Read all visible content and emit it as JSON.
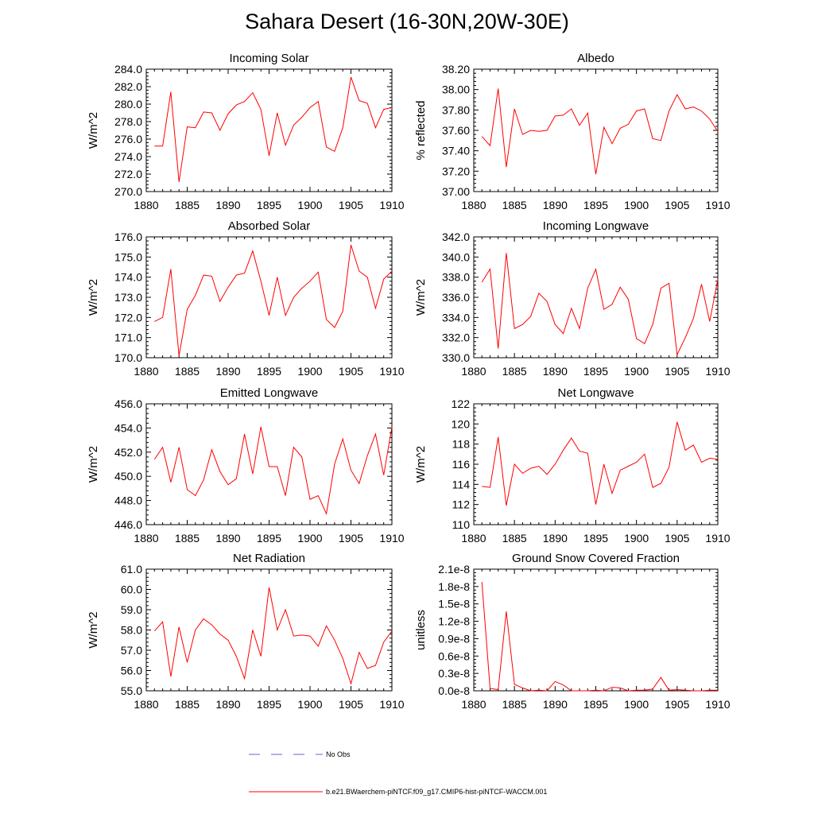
{
  "title": "Sahara Desert (16-30N,20W-30E)",
  "colors": {
    "series": "#ff0000",
    "noobs": "#6666cc",
    "axis": "#000000"
  },
  "legend": {
    "noobs_label": "No Obs",
    "series_label": "b.e21.BWaerchem-piNTCF.f09_g17.CMIP6-hist-piNTCF-WACCM.001"
  },
  "chart_data": [
    {
      "type": "line",
      "title": "Incoming Solar",
      "ylabel": "W/m^2",
      "xlim": [
        1880,
        1910
      ],
      "ylim": [
        270,
        284
      ],
      "yticks": [
        "270.0",
        "272.0",
        "274.0",
        "276.0",
        "278.0",
        "280.0",
        "282.0",
        "284.0"
      ],
      "xticks": [
        "1880",
        "1885",
        "1890",
        "1895",
        "1900",
        "1905",
        "1910"
      ],
      "x": [
        1881,
        1882,
        1883,
        1884,
        1885,
        1886,
        1887,
        1888,
        1889,
        1890,
        1891,
        1892,
        1893,
        1894,
        1895,
        1896,
        1897,
        1898,
        1899,
        1900,
        1901,
        1902,
        1903,
        1904,
        1905,
        1906,
        1907,
        1908,
        1909,
        1910
      ],
      "values": [
        275.2,
        275.2,
        281.4,
        271.1,
        277.4,
        277.3,
        279.1,
        279.0,
        277.0,
        278.9,
        279.9,
        280.3,
        281.3,
        279.4,
        274.1,
        279.0,
        275.3,
        277.6,
        278.5,
        279.6,
        280.3,
        275.1,
        274.6,
        277.3,
        283.1,
        280.4,
        280.1,
        277.3,
        279.4,
        279.6
      ]
    },
    {
      "type": "line",
      "title": "Albedo",
      "ylabel": "% reflected",
      "xlim": [
        1880,
        1910
      ],
      "ylim": [
        37.0,
        38.2
      ],
      "yticks": [
        "37.00",
        "37.20",
        "37.40",
        "37.60",
        "37.80",
        "38.00",
        "38.20"
      ],
      "xticks": [
        "1880",
        "1885",
        "1890",
        "1895",
        "1900",
        "1905",
        "1910"
      ],
      "x": [
        1881,
        1882,
        1883,
        1884,
        1885,
        1886,
        1887,
        1888,
        1889,
        1890,
        1891,
        1892,
        1893,
        1894,
        1895,
        1896,
        1897,
        1898,
        1899,
        1900,
        1901,
        1902,
        1903,
        1904,
        1905,
        1906,
        1907,
        1908,
        1909,
        1910
      ],
      "values": [
        37.54,
        37.45,
        38.01,
        37.24,
        37.81,
        37.56,
        37.6,
        37.59,
        37.6,
        37.74,
        37.75,
        37.81,
        37.65,
        37.77,
        37.17,
        37.63,
        37.47,
        37.62,
        37.66,
        37.79,
        37.81,
        37.52,
        37.5,
        37.79,
        37.95,
        37.81,
        37.83,
        37.79,
        37.71,
        37.59
      ]
    },
    {
      "type": "line",
      "title": "Absorbed Solar",
      "ylabel": "W/m^2",
      "xlim": [
        1880,
        1910
      ],
      "ylim": [
        170,
        176
      ],
      "yticks": [
        "170.0",
        "171.0",
        "172.0",
        "173.0",
        "174.0",
        "175.0",
        "176.0"
      ],
      "xticks": [
        "1880",
        "1885",
        "1890",
        "1895",
        "1900",
        "1905",
        "1910"
      ],
      "x": [
        1881,
        1882,
        1883,
        1884,
        1885,
        1886,
        1887,
        1888,
        1889,
        1890,
        1891,
        1892,
        1893,
        1894,
        1895,
        1896,
        1897,
        1898,
        1899,
        1900,
        1901,
        1902,
        1903,
        1904,
        1905,
        1906,
        1907,
        1908,
        1909,
        1910
      ],
      "values": [
        171.8,
        172.0,
        174.4,
        170.1,
        172.4,
        173.1,
        174.1,
        174.05,
        172.8,
        173.5,
        174.1,
        174.2,
        175.3,
        173.8,
        172.1,
        174.0,
        172.1,
        173.0,
        173.45,
        173.8,
        174.25,
        171.9,
        171.5,
        172.3,
        175.6,
        174.3,
        174.0,
        172.45,
        173.9,
        174.3
      ]
    },
    {
      "type": "line",
      "title": "Incoming Longwave",
      "ylabel": "W/m^2",
      "xlim": [
        1880,
        1910
      ],
      "ylim": [
        330,
        342
      ],
      "yticks": [
        "330.0",
        "332.0",
        "334.0",
        "336.0",
        "338.0",
        "340.0",
        "342.0"
      ],
      "xticks": [
        "1880",
        "1885",
        "1890",
        "1895",
        "1900",
        "1905",
        "1910"
      ],
      "x": [
        1881,
        1882,
        1883,
        1884,
        1885,
        1886,
        1887,
        1888,
        1889,
        1890,
        1891,
        1892,
        1893,
        1894,
        1895,
        1896,
        1897,
        1898,
        1899,
        1900,
        1901,
        1902,
        1903,
        1904,
        1905,
        1906,
        1907,
        1908,
        1909,
        1910
      ],
      "values": [
        337.5,
        338.8,
        330.9,
        340.4,
        332.9,
        333.3,
        334.1,
        336.4,
        335.6,
        333.3,
        332.4,
        334.9,
        332.9,
        336.9,
        338.8,
        334.8,
        335.3,
        337.0,
        335.8,
        331.9,
        331.4,
        333.3,
        336.9,
        337.4,
        330.3,
        332.0,
        333.9,
        337.3,
        333.6,
        337.8
      ]
    },
    {
      "type": "line",
      "title": "Emitted Longwave",
      "ylabel": "W/m^2",
      "xlim": [
        1880,
        1910
      ],
      "ylim": [
        446,
        456
      ],
      "yticks": [
        "446.0",
        "448.0",
        "450.0",
        "452.0",
        "454.0",
        "456.0"
      ],
      "xticks": [
        "1880",
        "1885",
        "1890",
        "1895",
        "1900",
        "1905",
        "1910"
      ],
      "x": [
        1881,
        1882,
        1883,
        1884,
        1885,
        1886,
        1887,
        1888,
        1889,
        1890,
        1891,
        1892,
        1893,
        1894,
        1895,
        1896,
        1897,
        1898,
        1899,
        1900,
        1901,
        1902,
        1903,
        1904,
        1905,
        1906,
        1907,
        1908,
        1909,
        1910
      ],
      "values": [
        451.4,
        452.4,
        449.5,
        452.4,
        448.9,
        448.4,
        449.7,
        452.2,
        450.4,
        449.3,
        449.8,
        453.5,
        450.2,
        454.1,
        450.8,
        450.8,
        448.4,
        452.4,
        451.6,
        448.1,
        448.4,
        446.9,
        451.0,
        453.1,
        450.5,
        449.4,
        451.7,
        453.5,
        450.1,
        454.1
      ]
    },
    {
      "type": "line",
      "title": "Net Longwave",
      "ylabel": "W/m^2",
      "xlim": [
        1880,
        1910
      ],
      "ylim": [
        110,
        122
      ],
      "yticks": [
        "110",
        "112",
        "114",
        "116",
        "118",
        "120",
        "122"
      ],
      "xticks": [
        "1880",
        "1885",
        "1890",
        "1895",
        "1900",
        "1905",
        "1910"
      ],
      "x": [
        1881,
        1882,
        1883,
        1884,
        1885,
        1886,
        1887,
        1888,
        1889,
        1890,
        1891,
        1892,
        1893,
        1894,
        1895,
        1896,
        1897,
        1898,
        1899,
        1900,
        1901,
        1902,
        1903,
        1904,
        1905,
        1906,
        1907,
        1908,
        1909,
        1910
      ],
      "values": [
        113.8,
        113.7,
        118.7,
        111.9,
        116.0,
        115.1,
        115.6,
        115.8,
        115.0,
        116.0,
        117.4,
        118.6,
        117.3,
        117.1,
        112.0,
        116.0,
        113.1,
        115.4,
        115.8,
        116.2,
        117.0,
        113.7,
        114.1,
        115.7,
        120.2,
        117.4,
        117.9,
        116.2,
        116.6,
        116.5
      ]
    },
    {
      "type": "line",
      "title": "Net Radiation",
      "ylabel": "W/m^2",
      "xlim": [
        1880,
        1910
      ],
      "ylim": [
        55,
        61
      ],
      "yticks": [
        "55.0",
        "56.0",
        "57.0",
        "58.0",
        "59.0",
        "60.0",
        "61.0"
      ],
      "xticks": [
        "1880",
        "1885",
        "1890",
        "1895",
        "1900",
        "1905",
        "1910"
      ],
      "x": [
        1881,
        1882,
        1883,
        1884,
        1885,
        1886,
        1887,
        1888,
        1889,
        1890,
        1891,
        1892,
        1893,
        1894,
        1895,
        1896,
        1897,
        1898,
        1899,
        1900,
        1901,
        1902,
        1903,
        1904,
        1905,
        1906,
        1907,
        1908,
        1909,
        1910
      ],
      "values": [
        57.95,
        58.4,
        55.7,
        58.15,
        56.4,
        58.0,
        58.55,
        58.25,
        57.8,
        57.5,
        56.7,
        55.6,
        58.0,
        56.7,
        60.1,
        58.0,
        59.0,
        57.7,
        57.75,
        57.7,
        57.2,
        58.2,
        57.5,
        56.6,
        55.35,
        56.9,
        56.1,
        56.25,
        57.4,
        57.95
      ]
    },
    {
      "type": "line",
      "title": "Ground Snow Covered Fraction",
      "ylabel": "unitless",
      "xlim": [
        1880,
        1910
      ],
      "ylim": [
        0,
        2.1
      ],
      "yticks": [
        "0.0e-8",
        "0.3e-8",
        "0.6e-8",
        "0.9e-8",
        "1.2e-8",
        "1.5e-8",
        "1.8e-8",
        "2.1e-8"
      ],
      "xticks": [
        "1880",
        "1885",
        "1890",
        "1895",
        "1900",
        "1905",
        "1910"
      ],
      "x": [
        1881,
        1882,
        1883,
        1884,
        1885,
        1886,
        1887,
        1888,
        1889,
        1890,
        1891,
        1892,
        1893,
        1894,
        1895,
        1896,
        1897,
        1898,
        1899,
        1900,
        1901,
        1902,
        1903,
        1904,
        1905,
        1906,
        1907,
        1908,
        1909,
        1910
      ],
      "values": [
        1.88,
        0.04,
        0.02,
        1.37,
        0.11,
        0.05,
        0.0,
        0.01,
        0.0,
        0.16,
        0.1,
        0.0,
        0.0,
        0.0,
        0.01,
        0.0,
        0.06,
        0.05,
        0.0,
        0.01,
        0.01,
        0.03,
        0.23,
        0.01,
        0.02,
        0.01,
        0.0,
        0.0,
        0.01,
        0.01
      ]
    }
  ]
}
